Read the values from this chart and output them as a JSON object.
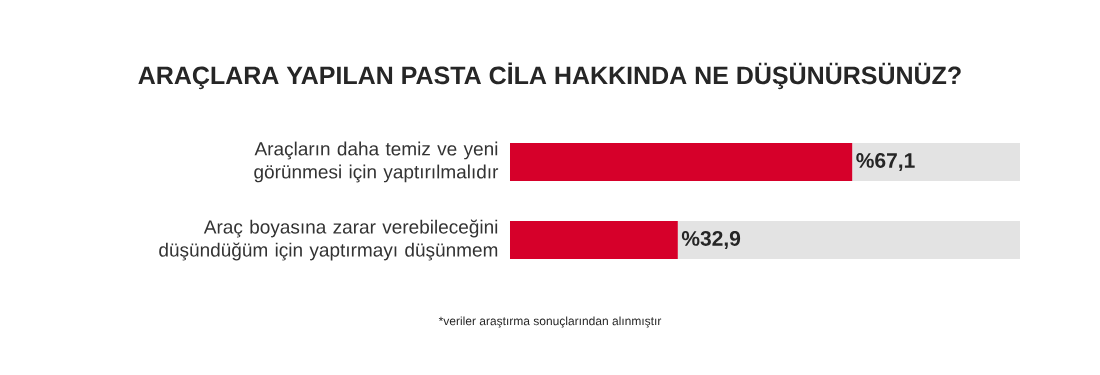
{
  "chart_data": {
    "type": "bar",
    "orientation": "horizontal",
    "stacked": true,
    "title": "ARAÇLARA YAPILAN PASTA CİLA HAKKINDA NE DÜŞÜNÜRSÜNÜZ?",
    "categories": [
      "Araçların daha temiz ve yeni görünmesi için yaptırılmalıdır",
      "Araç boyasına zarar verebileceğini düşündüğüm için yaptırmayı düşünmem"
    ],
    "series": [
      {
        "color": "#d6002a",
        "values": [
          67.1,
          32.9
        ],
        "value_labels": [
          "%67,1",
          "%32,9"
        ]
      },
      {
        "color": "#e3e3e3",
        "values": [
          32.9,
          67.1
        ]
      }
    ],
    "xlim": [
      0,
      100
    ],
    "annotations": [
      "*veriler araştırma sonuçlarından alınmıştır"
    ]
  }
}
